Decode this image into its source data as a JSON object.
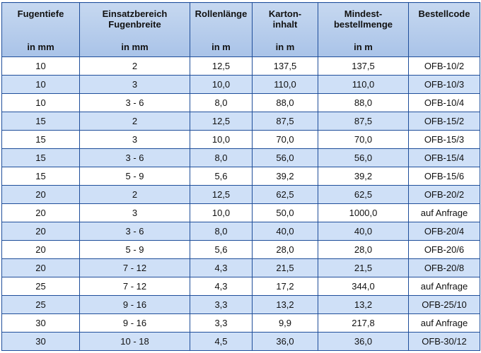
{
  "headers": [
    {
      "title": [
        "Fugentiefe"
      ],
      "unit": "in mm"
    },
    {
      "title": [
        "Einsatzbereich",
        "Fugenbreite"
      ],
      "unit": "in mm"
    },
    {
      "title": [
        "Rollenlänge"
      ],
      "unit": "in m"
    },
    {
      "title": [
        "Karton-",
        "inhalt"
      ],
      "unit": "in m"
    },
    {
      "title": [
        "Mindest-",
        "bestellmenge"
      ],
      "unit": "in m"
    },
    {
      "title": [
        "Bestellcode"
      ],
      "unit": ""
    }
  ],
  "rows": [
    [
      "10",
      "2",
      "12,5",
      "137,5",
      "137,5",
      "OFB-10/2"
    ],
    [
      "10",
      "3",
      "10,0",
      "110,0",
      "110,0",
      "OFB-10/3"
    ],
    [
      "10",
      "3 - 6",
      "8,0",
      "88,0",
      "88,0",
      "OFB-10/4"
    ],
    [
      "15",
      "2",
      "12,5",
      "87,5",
      "87,5",
      "OFB-15/2"
    ],
    [
      "15",
      "3",
      "10,0",
      "70,0",
      "70,0",
      "OFB-15/3"
    ],
    [
      "15",
      "3 - 6",
      "8,0",
      "56,0",
      "56,0",
      "OFB-15/4"
    ],
    [
      "15",
      "5 - 9",
      "5,6",
      "39,2",
      "39,2",
      "OFB-15/6"
    ],
    [
      "20",
      "2",
      "12,5",
      "62,5",
      "62,5",
      "OFB-20/2"
    ],
    [
      "20",
      "3",
      "10,0",
      "50,0",
      "1000,0",
      "auf Anfrage"
    ],
    [
      "20",
      "3 - 6",
      "8,0",
      "40,0",
      "40,0",
      "OFB-20/4"
    ],
    [
      "20",
      "5 - 9",
      "5,6",
      "28,0",
      "28,0",
      "OFB-20/6"
    ],
    [
      "20",
      "7 - 12",
      "4,3",
      "21,5",
      "21,5",
      "OFB-20/8"
    ],
    [
      "25",
      "7 - 12",
      "4,3",
      "17,2",
      "344,0",
      "auf Anfrage"
    ],
    [
      "25",
      "9 - 16",
      "3,3",
      "13,2",
      "13,2",
      "OFB-25/10"
    ],
    [
      "30",
      "9 - 16",
      "3,3",
      "9,9",
      "217,8",
      "auf Anfrage"
    ],
    [
      "30",
      "10 - 18",
      "4,5",
      "36,0",
      "36,0",
      "OFB-30/12"
    ]
  ],
  "colors": {
    "header_bg": "#b3cbeb",
    "row_alt_bg": "#cfe0f7",
    "border": "#1f4e9a"
  }
}
